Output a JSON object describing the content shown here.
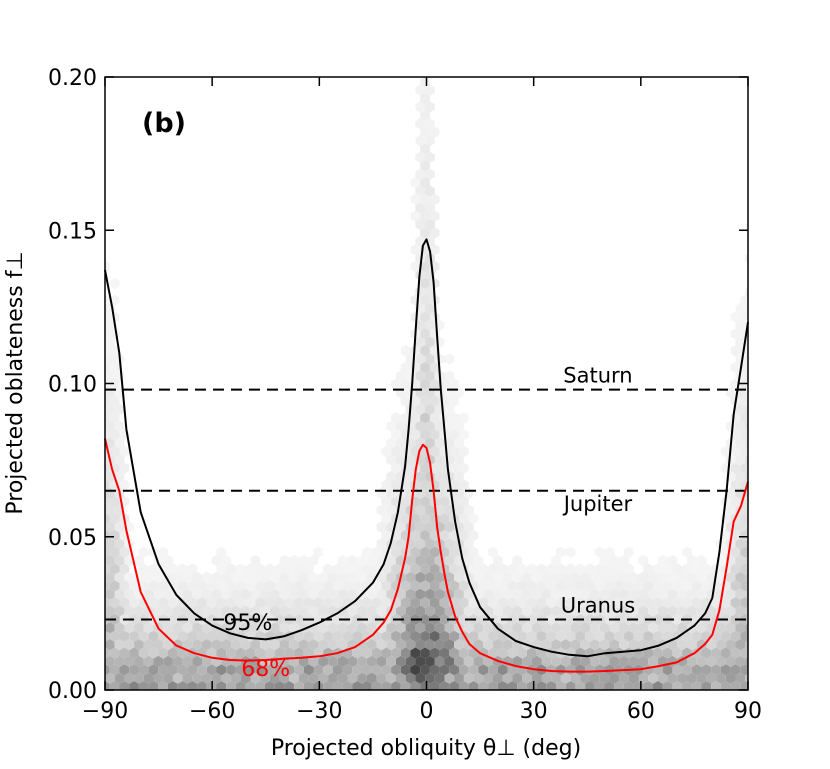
{
  "chart_data": {
    "type": "hexbin-density-with-contours",
    "panel_label": "(b)",
    "xlabel": "Projected obliquity θ⊥ (deg)",
    "ylabel": "Projected oblateness f⊥",
    "xlim": [
      -90,
      90
    ],
    "ylim": [
      0,
      0.2
    ],
    "x_ticks": [
      -90,
      -60,
      -30,
      0,
      30,
      60,
      90
    ],
    "y_ticks": [
      0.0,
      0.05,
      0.1,
      0.15,
      0.2
    ],
    "x_tick_labels": [
      "−90",
      "−60",
      "−30",
      "0",
      "30",
      "60",
      "90"
    ],
    "y_tick_labels": [
      "0.00",
      "0.05",
      "0.10",
      "0.15",
      "0.20"
    ],
    "reference_lines": [
      {
        "name": "Saturn",
        "y": 0.098,
        "label_x": 48
      },
      {
        "name": "Jupiter",
        "y": 0.065,
        "label_x": 48
      },
      {
        "name": "Uranus",
        "y": 0.023,
        "label_x": 48
      }
    ],
    "contours": [
      {
        "name": "95%",
        "color": "#000000",
        "label_point": [
          -50,
          0.0195
        ],
        "x": [
          -90,
          -88,
          -86,
          -84,
          -80,
          -75,
          -70,
          -65,
          -60,
          -55,
          -50,
          -45,
          -40,
          -35,
          -30,
          -25,
          -20,
          -15,
          -12,
          -10,
          -8,
          -6,
          -5,
          -4,
          -3,
          -2,
          -1,
          0,
          1,
          2,
          3,
          4,
          5,
          6,
          8,
          10,
          12,
          15,
          20,
          25,
          30,
          35,
          40,
          45,
          50,
          55,
          60,
          65,
          70,
          75,
          78,
          80,
          82,
          84,
          86,
          88,
          90
        ],
        "y": [
          0.137,
          0.125,
          0.11,
          0.085,
          0.058,
          0.041,
          0.031,
          0.025,
          0.021,
          0.0185,
          0.017,
          0.0165,
          0.0175,
          0.0195,
          0.022,
          0.025,
          0.029,
          0.035,
          0.041,
          0.048,
          0.058,
          0.073,
          0.085,
          0.1,
          0.118,
          0.135,
          0.145,
          0.147,
          0.143,
          0.133,
          0.115,
          0.098,
          0.085,
          0.072,
          0.055,
          0.043,
          0.035,
          0.027,
          0.02,
          0.016,
          0.014,
          0.0125,
          0.0115,
          0.011,
          0.012,
          0.0125,
          0.013,
          0.0145,
          0.017,
          0.021,
          0.025,
          0.03,
          0.045,
          0.065,
          0.09,
          0.105,
          0.12
        ]
      },
      {
        "name": "68%",
        "color": "#ff0000",
        "label_point": [
          -45,
          0.0045
        ],
        "x": [
          -90,
          -88,
          -86,
          -84,
          -80,
          -75,
          -70,
          -65,
          -60,
          -55,
          -50,
          -45,
          -40,
          -35,
          -30,
          -25,
          -20,
          -15,
          -12,
          -10,
          -8,
          -6,
          -5,
          -4,
          -3,
          -2,
          -1,
          0,
          1,
          2,
          3,
          4,
          5,
          6,
          8,
          10,
          12,
          15,
          20,
          25,
          30,
          35,
          40,
          45,
          50,
          55,
          60,
          65,
          70,
          75,
          78,
          80,
          82,
          84,
          86,
          88,
          90
        ],
        "y": [
          0.082,
          0.072,
          0.065,
          0.052,
          0.032,
          0.02,
          0.0145,
          0.012,
          0.0105,
          0.0098,
          0.0096,
          0.0098,
          0.0102,
          0.0105,
          0.011,
          0.012,
          0.014,
          0.018,
          0.022,
          0.026,
          0.033,
          0.043,
          0.05,
          0.062,
          0.072,
          0.078,
          0.08,
          0.079,
          0.074,
          0.065,
          0.053,
          0.045,
          0.038,
          0.032,
          0.024,
          0.019,
          0.015,
          0.012,
          0.0095,
          0.0078,
          0.0068,
          0.0062,
          0.006,
          0.006,
          0.0062,
          0.0065,
          0.0068,
          0.0078,
          0.009,
          0.012,
          0.015,
          0.018,
          0.026,
          0.04,
          0.055,
          0.06,
          0.068
        ]
      }
    ]
  }
}
